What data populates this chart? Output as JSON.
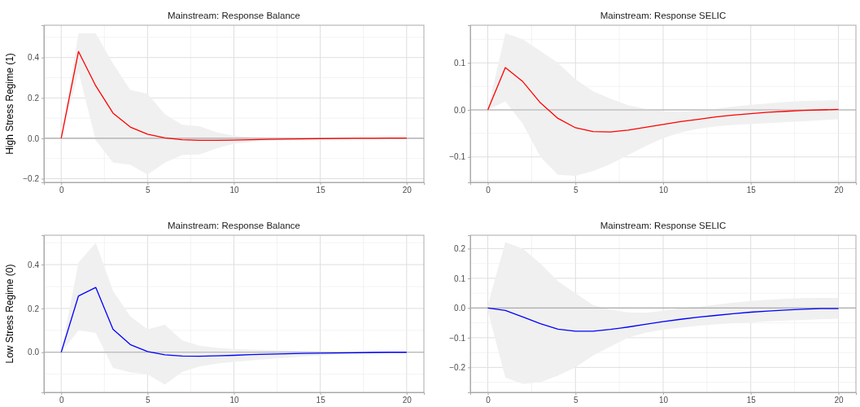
{
  "chart_data": [
    {
      "type": "line",
      "title": "Mainstream: Response Balance",
      "ylabel": "High Stress Regime (1)",
      "x": [
        0,
        1,
        2,
        3,
        4,
        5,
        6,
        7,
        8,
        9,
        10,
        11,
        12,
        13,
        14,
        15,
        16,
        17,
        18,
        19,
        20
      ],
      "xlim": [
        -1,
        21
      ],
      "xticks": [
        0,
        5,
        10,
        15,
        20
      ],
      "ylim": [
        -0.218,
        0.56
      ],
      "yticks": [
        {
          "value": -0.2,
          "label": "−0.2"
        },
        {
          "value": 0,
          "label": "0.0"
        },
        {
          "value": 0.2,
          "label": "0.2"
        },
        {
          "value": 0.4,
          "label": "0.4"
        }
      ],
      "grid": true,
      "line_style": "solid",
      "marker": "none",
      "ref_lines": [
        {
          "axis": "y",
          "value": 0,
          "color": "#aaaaaa"
        }
      ],
      "series": [
        {
          "color": "#ff0000",
          "values": [
            0,
            0.43,
            0.26,
            0.125,
            0.056,
            0.02,
            0.002,
            -0.007,
            -0.01,
            -0.01,
            -0.009,
            -0.007,
            -0.005,
            -0.004,
            -0.003,
            -0.002,
            -0.001,
            0,
            0,
            0.001,
            0.001
          ],
          "upper": [
            0,
            0.52,
            0.52,
            0.37,
            0.24,
            0.22,
            0.12,
            0.067,
            0.06,
            0.03,
            0.013,
            0.005,
            0.004,
            0.003,
            0.003,
            0.003,
            0.002,
            0.002,
            0.002,
            0.002,
            0.002
          ],
          "lower": [
            0,
            0.33,
            -0.01,
            -0.12,
            -0.13,
            -0.18,
            -0.12,
            -0.083,
            -0.08,
            -0.05,
            -0.027,
            -0.018,
            -0.012,
            -0.009,
            -0.007,
            -0.005,
            -0.004,
            -0.003,
            -0.003,
            -0.002,
            -0.002
          ]
        }
      ]
    },
    {
      "type": "line",
      "title": "Mainstream: Response SELIC",
      "x": [
        0,
        1,
        2,
        3,
        4,
        5,
        6,
        7,
        8,
        9,
        10,
        11,
        12,
        13,
        14,
        15,
        16,
        17,
        18,
        19,
        20
      ],
      "xlim": [
        -1,
        21
      ],
      "xticks": [
        0,
        5,
        10,
        15,
        20
      ],
      "ylim": [
        -0.154,
        0.18
      ],
      "yticks": [
        {
          "value": -0.1,
          "label": "−0.1"
        },
        {
          "value": 0,
          "label": "0.0"
        },
        {
          "value": 0.1,
          "label": "0.1"
        }
      ],
      "grid": true,
      "line_style": "solid",
      "marker": "none",
      "ref_lines": [
        {
          "axis": "y",
          "value": 0,
          "color": "#aaaaaa"
        }
      ],
      "series": [
        {
          "color": "#ff0000",
          "values": [
            0,
            0.09,
            0.06,
            0.015,
            -0.018,
            -0.038,
            -0.046,
            -0.047,
            -0.043,
            -0.037,
            -0.031,
            -0.025,
            -0.02,
            -0.015,
            -0.011,
            -0.008,
            -0.005,
            -0.003,
            -0.001,
            0,
            0.001
          ],
          "upper": [
            0,
            0.163,
            0.15,
            0.125,
            0.1,
            0.065,
            0.04,
            0.024,
            0.01,
            0.002,
            -0.003,
            -0.004,
            -0.002,
            0.002,
            0.007,
            0.011,
            0.014,
            0.017,
            0.019,
            0.02,
            0.021
          ],
          "lower": [
            0,
            0.018,
            -0.03,
            -0.1,
            -0.138,
            -0.14,
            -0.13,
            -0.115,
            -0.096,
            -0.077,
            -0.06,
            -0.048,
            -0.04,
            -0.035,
            -0.032,
            -0.03,
            -0.028,
            -0.026,
            -0.024,
            -0.022,
            -0.02
          ]
        }
      ]
    },
    {
      "type": "line",
      "title": "Mainstream: Response Balance",
      "ylabel": "Low Stress Regime (0)",
      "x": [
        0,
        1,
        2,
        3,
        4,
        5,
        6,
        7,
        8,
        9,
        10,
        11,
        12,
        13,
        14,
        15,
        16,
        17,
        18,
        19,
        20
      ],
      "xlim": [
        -1,
        21
      ],
      "xticks": [
        0,
        5,
        10,
        15,
        20
      ],
      "ylim": [
        -0.183,
        0.534
      ],
      "yticks": [
        {
          "value": 0,
          "label": "0.0"
        },
        {
          "value": 0.2,
          "label": "0.2"
        },
        {
          "value": 0.4,
          "label": "0.4"
        }
      ],
      "grid": true,
      "line_style": "solid",
      "marker": "none",
      "ref_lines": [
        {
          "axis": "y",
          "value": 0,
          "color": "#aaaaaa"
        }
      ],
      "series": [
        {
          "color": "#0000ff",
          "values": [
            0,
            0.257,
            0.296,
            0.105,
            0.035,
            0.003,
            -0.012,
            -0.017,
            -0.018,
            -0.016,
            -0.014,
            -0.011,
            -0.009,
            -0.007,
            -0.005,
            -0.004,
            -0.003,
            -0.002,
            -0.001,
            0,
            0
          ],
          "upper": [
            0,
            0.41,
            0.5,
            0.28,
            0.163,
            0.105,
            0.125,
            0.055,
            0.03,
            0.02,
            0.015,
            0.012,
            0.01,
            0.008,
            0.006,
            0.004,
            0.003,
            0.002,
            0.002,
            0.001,
            0.001
          ],
          "lower": [
            0,
            0.1,
            0.088,
            -0.072,
            -0.092,
            -0.1,
            -0.148,
            -0.09,
            -0.065,
            -0.052,
            -0.044,
            -0.037,
            -0.031,
            -0.025,
            -0.02,
            -0.015,
            -0.011,
            -0.008,
            -0.005,
            -0.003,
            -0.002
          ]
        }
      ]
    },
    {
      "type": "line",
      "title": "Mainstream: Response SELIC",
      "x": [
        0,
        1,
        2,
        3,
        4,
        5,
        6,
        7,
        8,
        9,
        10,
        11,
        12,
        13,
        14,
        15,
        16,
        17,
        18,
        19,
        20
      ],
      "xlim": [
        -1,
        21
      ],
      "xticks": [
        0,
        5,
        10,
        15,
        20
      ],
      "ylim": [
        -0.284,
        0.245
      ],
      "yticks": [
        {
          "value": -0.2,
          "label": "−0.2"
        },
        {
          "value": -0.1,
          "label": "−0.1"
        },
        {
          "value": 0,
          "label": "0.0"
        },
        {
          "value": 0.1,
          "label": "0.1"
        },
        {
          "value": 0.2,
          "label": "0.2"
        }
      ],
      "grid": true,
      "line_style": "solid",
      "marker": "none",
      "ref_lines": [
        {
          "axis": "y",
          "value": 0,
          "color": "#aaaaaa"
        }
      ],
      "series": [
        {
          "color": "#0000ff",
          "values": [
            0,
            -0.008,
            -0.03,
            -0.053,
            -0.071,
            -0.078,
            -0.078,
            -0.072,
            -0.064,
            -0.055,
            -0.046,
            -0.038,
            -0.031,
            -0.025,
            -0.019,
            -0.014,
            -0.01,
            -0.007,
            -0.004,
            -0.002,
            -0.002
          ],
          "upper": [
            0.01,
            0.222,
            0.2,
            0.15,
            0.09,
            0.05,
            0.01,
            -0.005,
            -0.015,
            -0.016,
            -0.009,
            0,
            0.004,
            0.011,
            0.018,
            0.024,
            0.028,
            0.031,
            0.033,
            0.034,
            0.034
          ],
          "lower": [
            -0.01,
            -0.235,
            -0.255,
            -0.25,
            -0.228,
            -0.2,
            -0.16,
            -0.13,
            -0.1,
            -0.083,
            -0.073,
            -0.066,
            -0.06,
            -0.055,
            -0.051,
            -0.048,
            -0.045,
            -0.042,
            -0.04,
            -0.038,
            -0.036
          ]
        }
      ]
    }
  ]
}
